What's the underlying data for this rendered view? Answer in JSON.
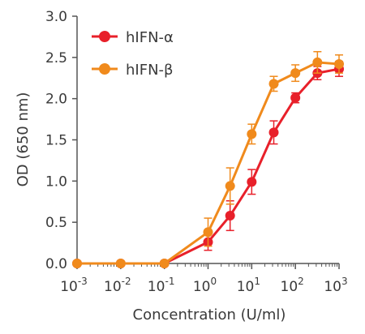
{
  "chart_data": {
    "type": "line",
    "xlabel": "Concentration (U/ml)",
    "ylabel": "OD (650 nm)",
    "x_scale": "log",
    "xlim": [
      0.001,
      1000
    ],
    "ylim": [
      0,
      3.0
    ],
    "x_ticks": [
      {
        "value": 0.001,
        "base": "10",
        "exp": "-3"
      },
      {
        "value": 0.01,
        "base": "10",
        "exp": "-2"
      },
      {
        "value": 0.1,
        "base": "10",
        "exp": "-1"
      },
      {
        "value": 1,
        "base": "10",
        "exp": "0"
      },
      {
        "value": 10,
        "base": "10",
        "exp": "1"
      },
      {
        "value": 100,
        "base": "10",
        "exp": "2"
      },
      {
        "value": 1000,
        "base": "10",
        "exp": "3"
      }
    ],
    "y_ticks": [
      "0.0",
      "0.5",
      "1.0",
      "1.5",
      "2.0",
      "2.5",
      "3.0"
    ],
    "grid": false,
    "legend_position": "top-left",
    "series": [
      {
        "name": "hIFN-α",
        "color": "#e8202a",
        "x": [
          0.001,
          0.01,
          0.1,
          1,
          3.2,
          10,
          32,
          100,
          320,
          1000
        ],
        "y": [
          0.0,
          0.0,
          0.0,
          0.26,
          0.58,
          0.99,
          1.59,
          2.01,
          2.31,
          2.36
        ],
        "err": [
          0.0,
          0.0,
          0.0,
          0.1,
          0.18,
          0.15,
          0.14,
          0.06,
          0.08,
          0.09
        ]
      },
      {
        "name": "hIFN-β",
        "color": "#f08a1c",
        "x": [
          0.001,
          0.01,
          0.1,
          1,
          3.2,
          10,
          32,
          100,
          320,
          1000
        ],
        "y": [
          0.0,
          0.0,
          0.0,
          0.38,
          0.94,
          1.57,
          2.18,
          2.31,
          2.44,
          2.42
        ],
        "err": [
          0.0,
          0.0,
          0.0,
          0.17,
          0.22,
          0.12,
          0.09,
          0.1,
          0.13,
          0.11
        ]
      }
    ]
  }
}
